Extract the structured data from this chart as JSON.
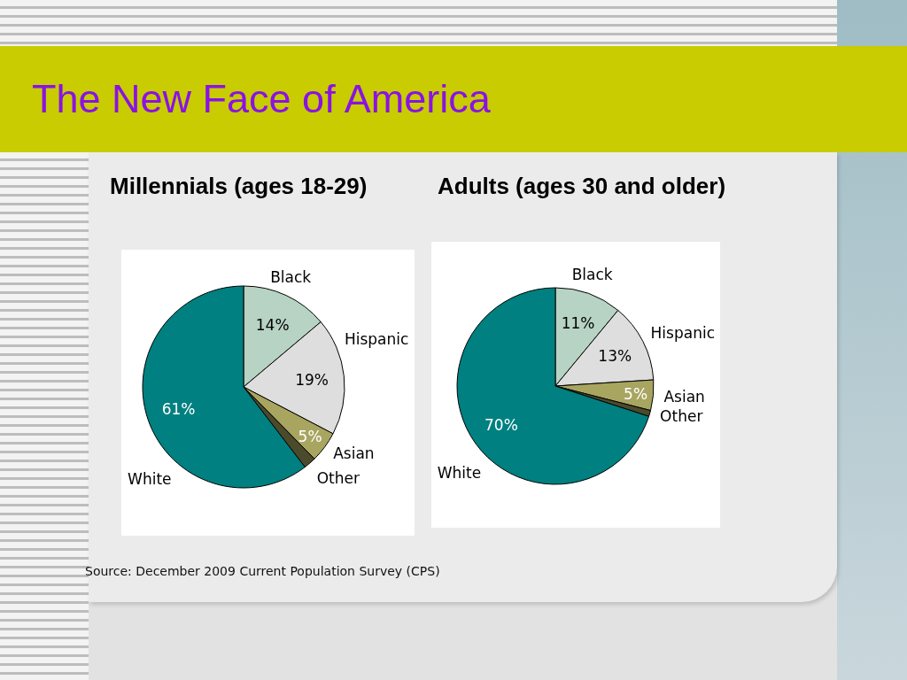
{
  "chart_data": [
    {
      "type": "other",
      "title": "The New Face of America",
      "annotations": [
        "Source: December 2009 Current Population Survey (CPS)"
      ]
    },
    {
      "type": "pie",
      "title": "Millennials (ages 18-29)",
      "categories": [
        "Black",
        "Hispanic",
        "Asian",
        "Other",
        "White"
      ],
      "values": [
        14,
        19,
        5,
        2,
        61
      ],
      "colors": [
        "#b6d3c3",
        "#dedede",
        "#a8a561",
        "#4b4b2c",
        "#008080"
      ],
      "value_labels": [
        "14%",
        "19%",
        "5%",
        null,
        "61%"
      ]
    },
    {
      "type": "pie",
      "title": "Adults (ages 30 and older)",
      "categories": [
        "Black",
        "Hispanic",
        "Asian",
        "Other",
        "White"
      ],
      "values": [
        11,
        13,
        5,
        1,
        70
      ],
      "colors": [
        "#b6d3c3",
        "#dedede",
        "#a8a561",
        "#4b4b2c",
        "#008080"
      ],
      "value_labels": [
        "11%",
        "13%",
        "5%",
        null,
        "70%"
      ]
    }
  ]
}
